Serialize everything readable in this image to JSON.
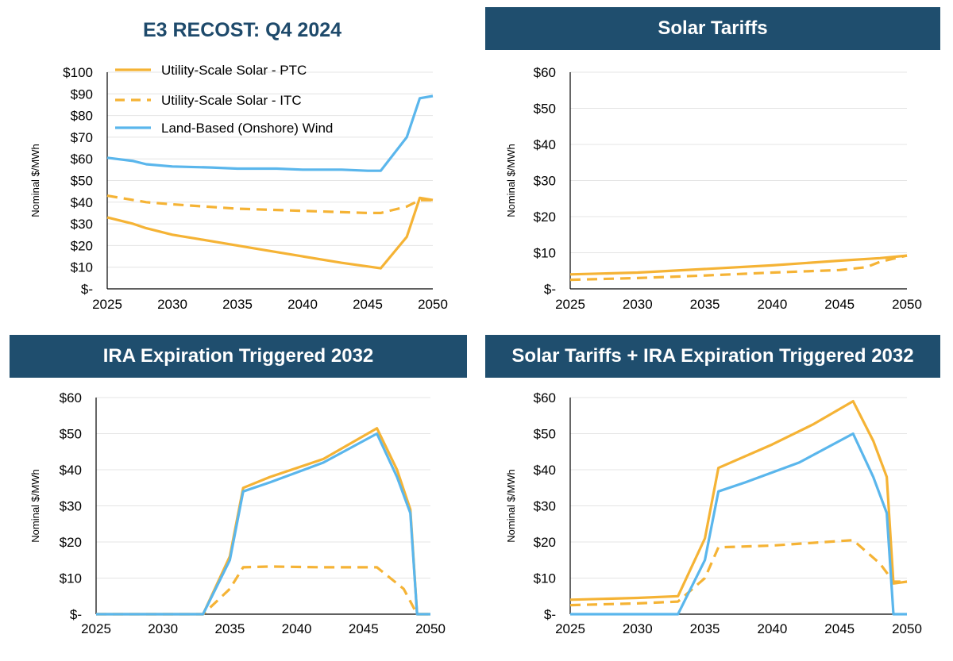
{
  "colors": {
    "solar": "#f5b335",
    "wind": "#5ab6ec",
    "header_bg": "#1f4e6e",
    "title_text": "#1e4a6b"
  },
  "chart_data": [
    {
      "type": "line",
      "title": "E3 RECOST: Q4 2024",
      "ylabel": "Nominal $/MWh",
      "xlim": [
        2025,
        2050
      ],
      "ylim": [
        0,
        100
      ],
      "yticks": [
        0,
        10,
        20,
        30,
        40,
        50,
        60,
        70,
        80,
        90,
        100
      ],
      "ytick_labels": [
        "$-",
        "$10",
        "$20",
        "$30",
        "$40",
        "$50",
        "$60",
        "$70",
        "$80",
        "$90",
        "$100"
      ],
      "xticks": [
        2025,
        2030,
        2035,
        2040,
        2045,
        2050
      ],
      "xtick_labels": [
        "2025",
        "2030",
        "2035",
        "2040",
        "2045",
        "2050"
      ],
      "legend_position": "top-left",
      "series": [
        {
          "name": "Utility-Scale Solar - PTC",
          "style": "solid",
          "color": "#f5b335",
          "x": [
            2025,
            2027,
            2028,
            2030,
            2032,
            2035,
            2037,
            2040,
            2043,
            2046,
            2048,
            2049,
            2050
          ],
          "y": [
            33,
            30,
            28,
            25,
            23,
            20,
            18,
            15,
            12,
            9.5,
            24,
            42,
            41
          ]
        },
        {
          "name": "Utility-Scale Solar - ITC",
          "style": "dashed",
          "color": "#f5b335",
          "x": [
            2025,
            2028,
            2030,
            2035,
            2040,
            2045,
            2046,
            2048,
            2049,
            2050
          ],
          "y": [
            43,
            40,
            39,
            37,
            36,
            35,
            35,
            38,
            41,
            41
          ]
        },
        {
          "name": "Land-Based (Onshore) Wind",
          "style": "solid",
          "color": "#5ab6ec",
          "x": [
            2025,
            2027,
            2028,
            2030,
            2033,
            2035,
            2038,
            2040,
            2043,
            2045,
            2046,
            2048,
            2049,
            2050
          ],
          "y": [
            60.5,
            59,
            57.5,
            56.5,
            56,
            55.5,
            55.5,
            55,
            55,
            54.5,
            54.5,
            70,
            88,
            89
          ]
        }
      ]
    },
    {
      "type": "line",
      "title": "Solar Tariffs",
      "ylabel": "Nominal $/MWh",
      "xlim": [
        2025,
        2050
      ],
      "ylim": [
        0,
        60
      ],
      "yticks": [
        0,
        10,
        20,
        30,
        40,
        50,
        60
      ],
      "ytick_labels": [
        "$-",
        "$10",
        "$20",
        "$30",
        "$40",
        "$50",
        "$60"
      ],
      "xticks": [
        2025,
        2030,
        2035,
        2040,
        2045,
        2050
      ],
      "xtick_labels": [
        "2025",
        "2030",
        "2035",
        "2040",
        "2045",
        "2050"
      ],
      "series": [
        {
          "style": "solid",
          "color": "#f5b335",
          "x": [
            2025,
            2030,
            2035,
            2040,
            2045,
            2048,
            2050
          ],
          "y": [
            4,
            4.5,
            5.5,
            6.5,
            7.8,
            8.5,
            9.2
          ]
        },
        {
          "style": "dashed",
          "color": "#f5b335",
          "x": [
            2025,
            2030,
            2035,
            2040,
            2045,
            2047,
            2048,
            2050
          ],
          "y": [
            2.5,
            3,
            3.7,
            4.5,
            5.2,
            6,
            7.5,
            9.2
          ]
        }
      ]
    },
    {
      "type": "line",
      "title": "IRA Expiration Triggered 2032",
      "ylabel": "Nominal $/MWh",
      "xlim": [
        2025,
        2050
      ],
      "ylim": [
        0,
        60
      ],
      "yticks": [
        0,
        10,
        20,
        30,
        40,
        50,
        60
      ],
      "ytick_labels": [
        "$-",
        "$10",
        "$20",
        "$30",
        "$40",
        "$50",
        "$60"
      ],
      "xticks": [
        2025,
        2030,
        2035,
        2040,
        2045,
        2050
      ],
      "xtick_labels": [
        "2025",
        "2030",
        "2035",
        "2040",
        "2045",
        "2050"
      ],
      "series": [
        {
          "style": "solid",
          "color": "#f5b335",
          "x": [
            2025,
            2033,
            2035,
            2036,
            2038,
            2042,
            2046,
            2047.5,
            2048.5,
            2049,
            2050
          ],
          "y": [
            0,
            0,
            16,
            35,
            38,
            43,
            51.5,
            40,
            29,
            0,
            0
          ]
        },
        {
          "style": "dashed",
          "color": "#f5b335",
          "x": [
            2025,
            2033,
            2035,
            2036,
            2038,
            2042,
            2046,
            2048,
            2049,
            2050
          ],
          "y": [
            0,
            0,
            7,
            13,
            13.2,
            13,
            13,
            7,
            0,
            0
          ]
        },
        {
          "style": "solid",
          "color": "#5ab6ec",
          "x": [
            2025,
            2033,
            2035,
            2036,
            2038,
            2042,
            2046,
            2047.5,
            2048.5,
            2049,
            2050
          ],
          "y": [
            0,
            0,
            15,
            34,
            36.5,
            42,
            50,
            38,
            28,
            0,
            0
          ]
        }
      ]
    },
    {
      "type": "line",
      "title": "Solar Tariffs + IRA Expiration Triggered 2032",
      "ylabel": "Nominal $/MWh",
      "xlim": [
        2025,
        2050
      ],
      "ylim": [
        0,
        60
      ],
      "yticks": [
        0,
        10,
        20,
        30,
        40,
        50,
        60
      ],
      "ytick_labels": [
        "$-",
        "$10",
        "$20",
        "$30",
        "$40",
        "$50",
        "$60"
      ],
      "xticks": [
        2025,
        2030,
        2035,
        2040,
        2045,
        2050
      ],
      "xtick_labels": [
        "2025",
        "2030",
        "2035",
        "2040",
        "2045",
        "2050"
      ],
      "series": [
        {
          "style": "solid",
          "color": "#f5b335",
          "x": [
            2025,
            2030,
            2033,
            2035,
            2036,
            2040,
            2043,
            2046,
            2047.5,
            2048.5,
            2049,
            2050
          ],
          "y": [
            4,
            4.5,
            5,
            21,
            40.5,
            47,
            52.5,
            59,
            48,
            38,
            8.5,
            9
          ]
        },
        {
          "style": "dashed",
          "color": "#f5b335",
          "x": [
            2025,
            2030,
            2033,
            2035,
            2036,
            2040,
            2046,
            2048,
            2049,
            2050
          ],
          "y": [
            2.5,
            3,
            3.5,
            10,
            18.5,
            19,
            20.5,
            14,
            9,
            9
          ]
        },
        {
          "style": "solid",
          "color": "#5ab6ec",
          "x": [
            2025,
            2033,
            2035,
            2036,
            2038,
            2042,
            2046,
            2047.5,
            2048.5,
            2049,
            2050
          ],
          "y": [
            0,
            0,
            15,
            34,
            36.5,
            42,
            50,
            38,
            28,
            0,
            0
          ]
        }
      ]
    }
  ]
}
